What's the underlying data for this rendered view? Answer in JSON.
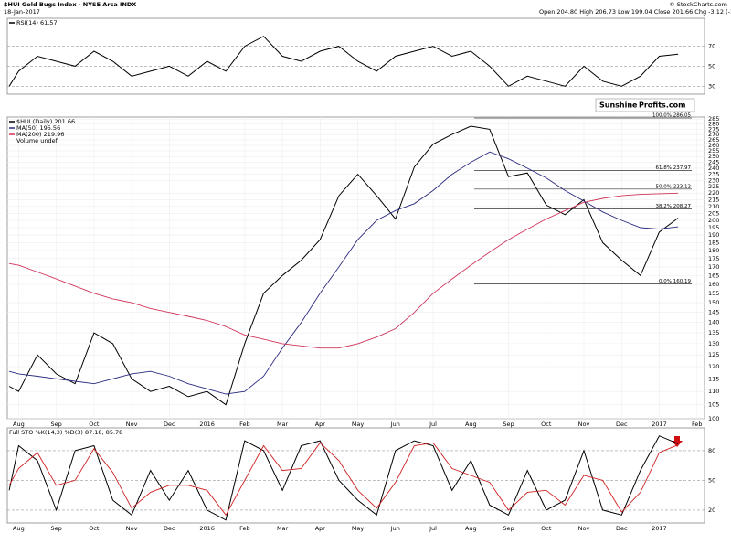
{
  "header": {
    "title": "$HUI Gold Bugs Index - NYSE Arca INDX",
    "date": "18-Jan-2017",
    "ohlc": "Open 204.80 High 206.73 Low 199.04 Close 201.66 Chg -3.12 (-1.52%)",
    "credit": "© StockCharts.com",
    "logo": [
      "Sunshine",
      "Profits.com"
    ]
  },
  "chart_data": [
    {
      "type": "line",
      "x": [
        -0.25,
        0,
        0.5,
        1,
        1.5,
        2,
        2.5,
        3,
        3.5,
        4,
        4.5,
        5,
        5.5,
        6,
        6.5,
        7,
        7.5,
        8,
        8.5,
        9,
        9.5,
        10,
        10.5,
        11,
        11.5,
        12,
        12.5,
        13,
        13.5,
        14,
        14.5,
        15,
        15.5,
        16,
        16.5,
        17,
        17.5
      ],
      "xlim": [
        -0.3,
        18.2
      ],
      "ylim": [
        22,
        98
      ],
      "yticks": [
        30,
        50,
        70
      ],
      "series": [
        {
          "name": "RSI(14) 61.57",
          "color": "#000000",
          "values": [
            30,
            45,
            60,
            55,
            50,
            65,
            55,
            40,
            45,
            50,
            40,
            55,
            45,
            70,
            80,
            60,
            55,
            65,
            70,
            55,
            45,
            60,
            65,
            70,
            60,
            65,
            50,
            30,
            40,
            35,
            30,
            50,
            35,
            30,
            40,
            60,
            62
          ]
        }
      ]
    },
    {
      "type": "line",
      "x": [
        -0.25,
        0,
        0.5,
        1,
        1.5,
        2,
        2.5,
        3,
        3.5,
        4,
        4.5,
        5,
        5.5,
        6,
        6.5,
        7,
        7.5,
        8,
        8.5,
        9,
        9.5,
        10,
        10.5,
        11,
        11.5,
        12,
        12.5,
        13,
        13.5,
        14,
        14.5,
        15,
        15.5,
        16,
        16.5,
        17,
        17.5
      ],
      "xlim": [
        -0.3,
        18.2
      ],
      "xticks": [
        {
          "value": 0,
          "label": "Aug"
        },
        {
          "value": 1,
          "label": "Sep"
        },
        {
          "value": 2,
          "label": "Oct"
        },
        {
          "value": 3,
          "label": "Nov"
        },
        {
          "value": 4,
          "label": "Dec"
        },
        {
          "value": 5,
          "label": "2016"
        },
        {
          "value": 6,
          "label": "Feb"
        },
        {
          "value": 7,
          "label": "Mar"
        },
        {
          "value": 8,
          "label": "Apr"
        },
        {
          "value": 9,
          "label": "May"
        },
        {
          "value": 10,
          "label": "Jun"
        },
        {
          "value": 11,
          "label": "Jul"
        },
        {
          "value": 12,
          "label": "Aug"
        },
        {
          "value": 13,
          "label": "Sep"
        },
        {
          "value": 14,
          "label": "Oct"
        },
        {
          "value": 15,
          "label": "Nov"
        },
        {
          "value": 16,
          "label": "Dec"
        },
        {
          "value": 17,
          "label": "2017"
        },
        {
          "value": 18,
          "label": "Feb"
        }
      ],
      "log_scale": true,
      "ylim": [
        100,
        287
      ],
      "yticks": [
        100,
        105,
        110,
        115,
        120,
        125,
        130,
        135,
        140,
        145,
        150,
        155,
        160,
        165,
        170,
        175,
        180,
        185,
        190,
        195,
        200,
        205,
        210,
        215,
        220,
        225,
        230,
        235,
        240,
        245,
        250,
        255,
        260,
        265,
        270,
        275,
        280,
        285
      ],
      "grid": true,
      "volume_label": "Volume undef",
      "series": [
        {
          "name": "$HUI (Daily) 201.66",
          "color": "#000000",
          "values": [
            112,
            110,
            125,
            117,
            113,
            135,
            130,
            115,
            110,
            112,
            108,
            110,
            105,
            130,
            155,
            165,
            174,
            187,
            218,
            235,
            218,
            201,
            241,
            261,
            270,
            278,
            275,
            233,
            236,
            211,
            204,
            215,
            185,
            174,
            165,
            192,
            201.66
          ]
        },
        {
          "name": "MA(50) 195.56",
          "color": "#2a2a80",
          "values": [
            118,
            117,
            116,
            115,
            114,
            113,
            115,
            117,
            118,
            116,
            113,
            111,
            109,
            110,
            116,
            128,
            140,
            155,
            170,
            187,
            200,
            207,
            212,
            222,
            235,
            245,
            254,
            248,
            240,
            232,
            222,
            214,
            206,
            200,
            195,
            194,
            195.56
          ]
        },
        {
          "name": "MA(200) 219.96",
          "color": "#d0345a",
          "values": [
            172,
            171,
            167,
            163,
            159,
            155,
            152,
            150,
            147,
            145,
            143,
            141,
            138,
            134,
            132,
            130,
            129,
            128,
            128,
            130,
            133,
            137,
            145,
            155,
            163,
            171,
            179,
            187,
            194,
            201,
            207,
            213,
            216,
            218,
            219,
            219.5,
            219.96
          ]
        }
      ],
      "annotations": [
        {
          "value": 286.05,
          "label": "100.0% 286.05"
        },
        {
          "value": 237.97,
          "label": "61.8% 237.97"
        },
        {
          "value": 223.12,
          "label": "50.0% 223.12"
        },
        {
          "value": 208.27,
          "label": "38.2% 208.27"
        },
        {
          "value": 160.19,
          "label": "0.0% 160.19"
        }
      ]
    },
    {
      "type": "line",
      "x": [
        -0.25,
        0,
        0.5,
        1,
        1.5,
        2,
        2.5,
        3,
        3.5,
        4,
        4.5,
        5,
        5.5,
        6,
        6.5,
        7,
        7.5,
        8,
        8.5,
        9,
        9.5,
        10,
        10.5,
        11,
        11.5,
        12,
        12.5,
        13,
        13.5,
        14,
        14.5,
        15,
        15.5,
        16,
        16.5,
        17,
        17.5
      ],
      "xlim": [
        -0.3,
        18.2
      ],
      "xticks": [
        {
          "value": 0,
          "label": "Aug"
        },
        {
          "value": 1,
          "label": "Sep"
        },
        {
          "value": 2,
          "label": "Oct"
        },
        {
          "value": 3,
          "label": "Nov"
        },
        {
          "value": 4,
          "label": "Dec"
        },
        {
          "value": 5,
          "label": "2016"
        },
        {
          "value": 6,
          "label": "Feb"
        },
        {
          "value": 7,
          "label": "Mar"
        },
        {
          "value": 8,
          "label": "Apr"
        },
        {
          "value": 9,
          "label": "May"
        },
        {
          "value": 10,
          "label": "Jun"
        },
        {
          "value": 11,
          "label": "Jul"
        },
        {
          "value": 12,
          "label": "Aug"
        },
        {
          "value": 13,
          "label": "Sep"
        },
        {
          "value": 14,
          "label": "Oct"
        },
        {
          "value": 15,
          "label": "Nov"
        },
        {
          "value": 16,
          "label": "Dec"
        },
        {
          "value": 17,
          "label": "2017"
        }
      ],
      "ylim": [
        7,
        103
      ],
      "yticks": [
        20,
        50,
        80
      ],
      "legend": "Full STO %K(14,3) %D(3) 87.18, 85.78",
      "series": [
        {
          "color": "#000000",
          "values": [
            40,
            85,
            70,
            20,
            80,
            85,
            30,
            15,
            60,
            30,
            60,
            20,
            10,
            90,
            80,
            40,
            85,
            90,
            50,
            30,
            15,
            80,
            90,
            85,
            40,
            70,
            25,
            15,
            60,
            20,
            30,
            80,
            20,
            15,
            60,
            95,
            87
          ]
        },
        {
          "color": "#d02020",
          "values": [
            45,
            62,
            78,
            45,
            50,
            82,
            58,
            22,
            38,
            45,
            45,
            40,
            15,
            50,
            85,
            60,
            62,
            88,
            70,
            40,
            22,
            48,
            85,
            88,
            62,
            55,
            48,
            20,
            38,
            40,
            25,
            55,
            50,
            18,
            38,
            78,
            86
          ]
        }
      ]
    }
  ]
}
